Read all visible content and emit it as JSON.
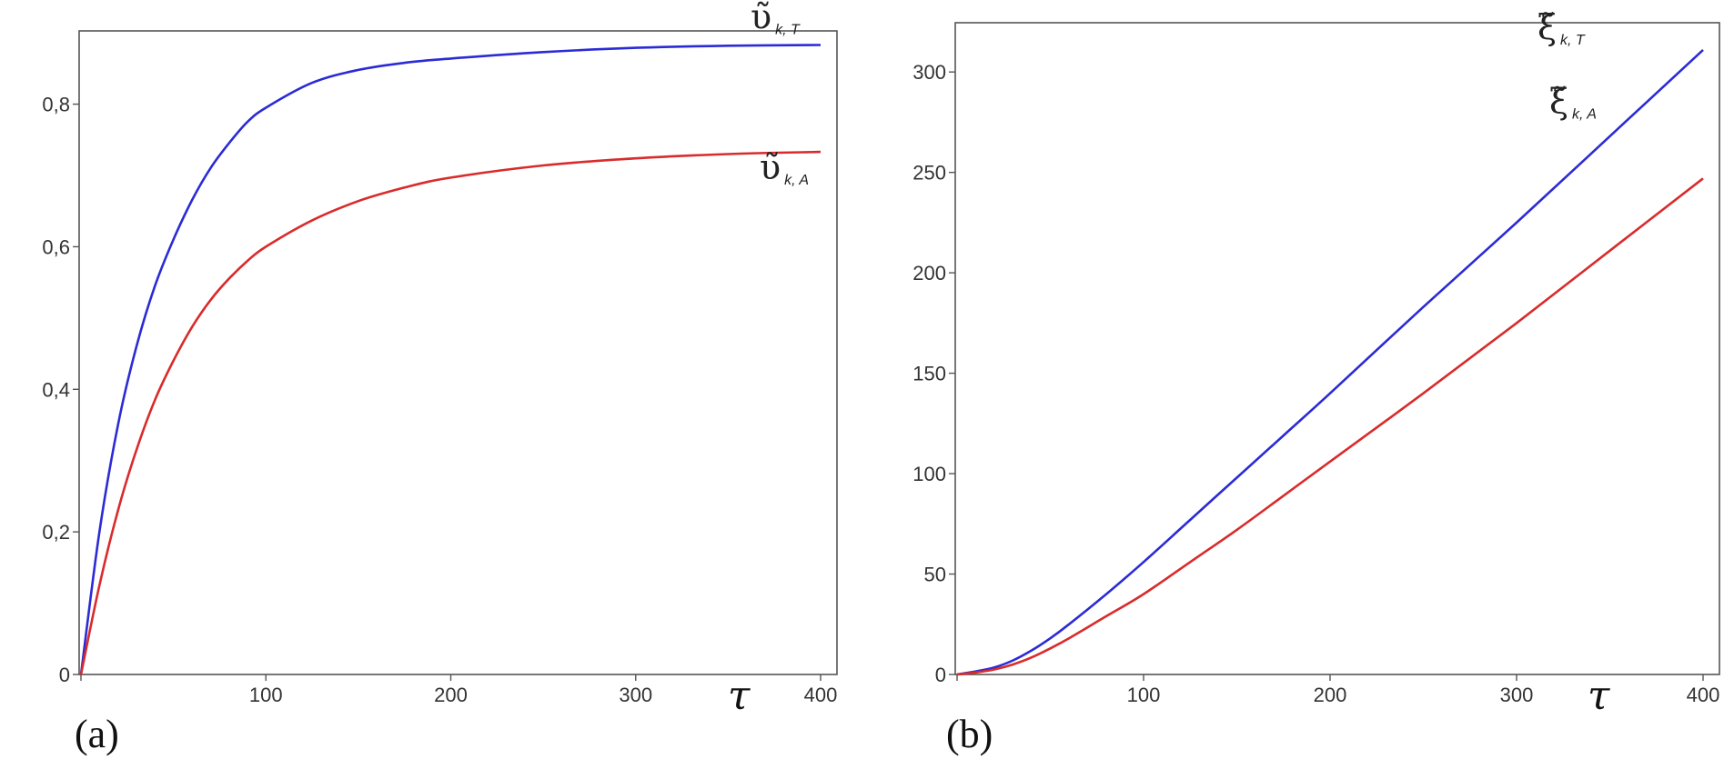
{
  "chart_data": [
    {
      "type": "line",
      "panel_label": "(a)",
      "xlabel": "τ",
      "ylabel": "",
      "xlim": [
        0,
        400
      ],
      "ylim": [
        0,
        0.89
      ],
      "x_ticks": [
        "0",
        "100",
        "200",
        "300",
        "400"
      ],
      "y_ticks": [
        "0",
        "0,2",
        "0,4",
        "0,6",
        "0,8"
      ],
      "x_tick_values": [
        0,
        100,
        200,
        300,
        400
      ],
      "y_tick_values": [
        0,
        0.2,
        0.4,
        0.6,
        0.8
      ],
      "x": [
        0,
        10,
        20,
        30,
        40,
        50,
        60,
        70,
        80,
        90,
        100,
        125,
        150,
        175,
        200,
        250,
        300,
        350,
        400
      ],
      "series": [
        {
          "label_main": "υ̃",
          "label_sub": "k, T",
          "color": "#2b2bd6",
          "values": [
            0.0,
            0.2,
            0.35,
            0.46,
            0.545,
            0.61,
            0.665,
            0.71,
            0.745,
            0.775,
            0.795,
            0.83,
            0.848,
            0.858,
            0.864,
            0.873,
            0.879,
            0.882,
            0.883
          ]
        },
        {
          "label_main": "υ̃",
          "label_sub": "k, A",
          "color": "#d92b2b",
          "values": [
            0.0,
            0.125,
            0.23,
            0.315,
            0.385,
            0.44,
            0.487,
            0.525,
            0.555,
            0.58,
            0.6,
            0.637,
            0.664,
            0.683,
            0.697,
            0.714,
            0.724,
            0.73,
            0.733
          ]
        }
      ]
    },
    {
      "type": "line",
      "panel_label": "(b)",
      "xlabel": "τ",
      "ylabel": "",
      "xlim": [
        0,
        400
      ],
      "ylim": [
        0,
        320
      ],
      "x_ticks": [
        "0",
        "100",
        "200",
        "300",
        "400"
      ],
      "y_ticks": [
        "0",
        "50",
        "100",
        "150",
        "200",
        "250",
        "300"
      ],
      "x_tick_values": [
        0,
        100,
        200,
        300,
        400
      ],
      "y_tick_values": [
        0,
        50,
        100,
        150,
        200,
        250,
        300
      ],
      "x": [
        0,
        10,
        20,
        30,
        40,
        50,
        60,
        80,
        100,
        125,
        150,
        175,
        200,
        250,
        300,
        350,
        400
      ],
      "series": [
        {
          "label_main": "ξ̃",
          "label_sub": "k, T",
          "color": "#2b2bd6",
          "values": [
            0,
            1.5,
            3.5,
            7,
            12,
            18,
            25,
            40,
            56,
            77,
            98,
            119,
            140,
            183,
            225,
            268,
            311
          ]
        },
        {
          "label_main": "ξ̃",
          "label_sub": "k, A",
          "color": "#d92b2b",
          "values": [
            0,
            1,
            2.5,
            5,
            8.5,
            13,
            18,
            29,
            40,
            56,
            72,
            89,
            106,
            140,
            175,
            211,
            247
          ]
        }
      ]
    }
  ]
}
